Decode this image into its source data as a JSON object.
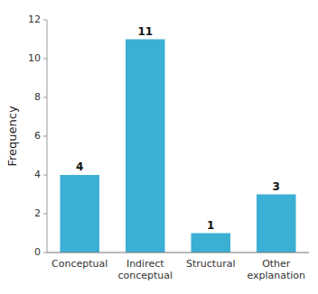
{
  "chart_data": {
    "type": "bar",
    "categories": [
      "Conceptual",
      "Indirect\nconceptual",
      "Structural",
      "Other\nexplanation"
    ],
    "values": [
      4,
      11,
      1,
      3
    ],
    "color": "#3BAFD4",
    "ylabel": "Frequency",
    "ylim": [
      0,
      12
    ],
    "yticks": [
      0,
      2,
      4,
      6,
      8,
      10,
      12
    ],
    "grid": false,
    "data_labels": true
  }
}
